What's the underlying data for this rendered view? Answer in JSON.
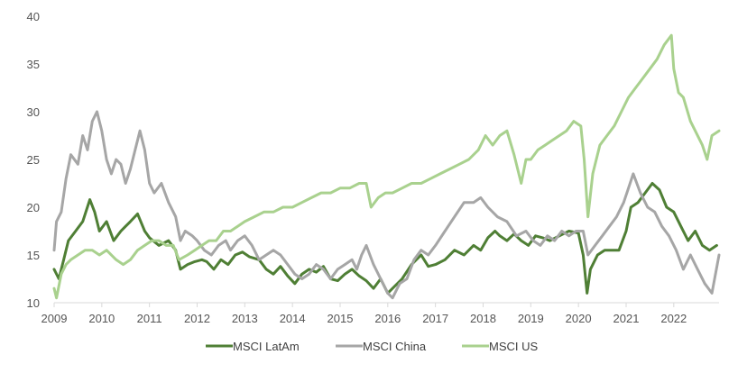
{
  "chart_data": {
    "type": "line",
    "title": "",
    "xlabel": "",
    "ylabel": "",
    "xlim": [
      2009,
      2022.95
    ],
    "ylim": [
      10,
      40
    ],
    "grid": false,
    "legend_position": "bottom",
    "x_tick_labels": [
      "2009",
      "2010",
      "2011",
      "2012",
      "2013",
      "2014",
      "2015",
      "2016",
      "2017",
      "2018",
      "2019",
      "2020",
      "2021",
      "2022"
    ],
    "y_tick_labels": [
      "10",
      "15",
      "20",
      "25",
      "30",
      "35",
      "40"
    ],
    "series": [
      {
        "name": "MSCI LatAm",
        "color": "#4f7f35",
        "x": [
          2009.0,
          2009.1,
          2009.2,
          2009.3,
          2009.45,
          2009.6,
          2009.75,
          2009.85,
          2009.95,
          2010.1,
          2010.25,
          2010.4,
          2010.5,
          2010.6,
          2010.75,
          2010.9,
          2011.0,
          2011.2,
          2011.4,
          2011.55,
          2011.65,
          2011.8,
          2011.95,
          2012.1,
          2012.2,
          2012.35,
          2012.5,
          2012.65,
          2012.8,
          2012.95,
          2013.1,
          2013.3,
          2013.45,
          2013.6,
          2013.75,
          2013.9,
          2014.05,
          2014.2,
          2014.35,
          2014.5,
          2014.65,
          2014.8,
          2014.95,
          2015.1,
          2015.25,
          2015.4,
          2015.55,
          2015.7,
          2015.85,
          2016.0,
          2016.1,
          2016.3,
          2016.5,
          2016.7,
          2016.85,
          2017.0,
          2017.2,
          2017.4,
          2017.6,
          2017.8,
          2017.95,
          2018.1,
          2018.25,
          2018.35,
          2018.5,
          2018.65,
          2018.8,
          2018.95,
          2019.1,
          2019.25,
          2019.4,
          2019.6,
          2019.8,
          2020.0,
          2020.1,
          2020.18,
          2020.25,
          2020.4,
          2020.55,
          2020.7,
          2020.85,
          2021.0,
          2021.1,
          2021.25,
          2021.4,
          2021.55,
          2021.7,
          2021.85,
          2022.0,
          2022.15,
          2022.3,
          2022.45,
          2022.6,
          2022.75,
          2022.9
        ],
        "y": [
          13.5,
          12.5,
          14.5,
          16.5,
          17.5,
          18.5,
          20.8,
          19.5,
          17.5,
          18.5,
          16.5,
          17.5,
          18.0,
          18.5,
          19.3,
          17.5,
          16.8,
          16.0,
          16.5,
          15.5,
          13.5,
          14.0,
          14.3,
          14.5,
          14.3,
          13.5,
          14.5,
          14.0,
          15.0,
          15.3,
          14.8,
          14.5,
          13.5,
          13.0,
          13.8,
          12.8,
          12.0,
          13.0,
          13.5,
          13.2,
          13.8,
          12.5,
          12.3,
          13.0,
          13.5,
          12.8,
          12.3,
          11.5,
          12.5,
          11.0,
          11.5,
          12.5,
          14.0,
          15.0,
          13.8,
          14.0,
          14.5,
          15.5,
          15.0,
          16.0,
          15.5,
          16.8,
          17.5,
          17.0,
          16.5,
          17.2,
          16.5,
          16.0,
          17.0,
          16.8,
          16.5,
          17.0,
          17.5,
          17.3,
          15.0,
          11.0,
          13.5,
          15.0,
          15.5,
          15.5,
          15.5,
          17.5,
          20.0,
          20.5,
          21.5,
          22.5,
          21.8,
          20.0,
          19.5,
          18.0,
          16.5,
          17.5,
          16.0,
          15.5,
          16.0
        ]
      },
      {
        "name": "MSCI China",
        "color": "#a6a6a6",
        "x": [
          2009.0,
          2009.05,
          2009.15,
          2009.25,
          2009.35,
          2009.5,
          2009.6,
          2009.7,
          2009.8,
          2009.9,
          2010.0,
          2010.1,
          2010.2,
          2010.3,
          2010.4,
          2010.5,
          2010.6,
          2010.7,
          2010.8,
          2010.9,
          2011.0,
          2011.1,
          2011.25,
          2011.4,
          2011.55,
          2011.65,
          2011.75,
          2011.9,
          2012.0,
          2012.15,
          2012.3,
          2012.45,
          2012.6,
          2012.7,
          2012.85,
          2013.0,
          2013.15,
          2013.3,
          2013.45,
          2013.6,
          2013.75,
          2013.9,
          2014.05,
          2014.2,
          2014.35,
          2014.5,
          2014.65,
          2014.8,
          2014.95,
          2015.1,
          2015.25,
          2015.35,
          2015.45,
          2015.55,
          2015.7,
          2015.85,
          2016.0,
          2016.1,
          2016.25,
          2016.4,
          2016.55,
          2016.7,
          2016.85,
          2017.0,
          2017.2,
          2017.4,
          2017.6,
          2017.8,
          2017.95,
          2018.1,
          2018.3,
          2018.5,
          2018.7,
          2018.9,
          2019.05,
          2019.2,
          2019.35,
          2019.5,
          2019.65,
          2019.8,
          2019.95,
          2020.1,
          2020.2,
          2020.35,
          2020.5,
          2020.65,
          2020.8,
          2020.95,
          2021.05,
          2021.15,
          2021.3,
          2021.45,
          2021.6,
          2021.75,
          2021.9,
          2022.05,
          2022.2,
          2022.35,
          2022.5,
          2022.65,
          2022.8,
          2022.95
        ],
        "y": [
          15.5,
          18.5,
          19.5,
          23.0,
          25.5,
          24.5,
          27.5,
          26.0,
          29.0,
          30.0,
          28.0,
          25.0,
          23.5,
          25.0,
          24.5,
          22.5,
          24.0,
          26.0,
          28.0,
          26.0,
          22.5,
          21.5,
          22.5,
          20.5,
          19.0,
          16.5,
          17.5,
          17.0,
          16.5,
          15.5,
          15.0,
          16.0,
          16.5,
          15.5,
          16.5,
          17.0,
          16.0,
          14.5,
          15.0,
          15.5,
          15.0,
          14.0,
          13.0,
          12.5,
          13.0,
          14.0,
          13.5,
          12.5,
          13.5,
          14.0,
          14.5,
          13.5,
          15.0,
          16.0,
          14.0,
          12.5,
          11.0,
          10.5,
          12.0,
          12.5,
          14.5,
          15.5,
          15.0,
          16.0,
          17.5,
          19.0,
          20.5,
          20.5,
          21.0,
          20.0,
          19.0,
          18.5,
          17.0,
          17.5,
          16.5,
          16.0,
          17.0,
          16.5,
          17.5,
          17.0,
          17.5,
          17.5,
          15.0,
          16.0,
          17.0,
          18.0,
          19.0,
          20.5,
          22.0,
          23.5,
          21.5,
          20.0,
          19.5,
          18.0,
          17.0,
          15.5,
          13.5,
          15.0,
          13.5,
          12.0,
          11.0,
          15.0
        ]
      },
      {
        "name": "MSCI US",
        "color": "#a9d18e",
        "x": [
          2009.0,
          2009.05,
          2009.15,
          2009.25,
          2009.35,
          2009.5,
          2009.65,
          2009.8,
          2009.95,
          2010.1,
          2010.3,
          2010.45,
          2010.6,
          2010.75,
          2010.9,
          2011.05,
          2011.2,
          2011.35,
          2011.5,
          2011.62,
          2011.8,
          2011.95,
          2012.1,
          2012.25,
          2012.4,
          2012.55,
          2012.7,
          2012.85,
          2013.0,
          2013.2,
          2013.4,
          2013.6,
          2013.8,
          2014.0,
          2014.2,
          2014.4,
          2014.6,
          2014.8,
          2015.0,
          2015.2,
          2015.4,
          2015.55,
          2015.65,
          2015.8,
          2015.95,
          2016.1,
          2016.3,
          2016.5,
          2016.7,
          2016.9,
          2017.1,
          2017.3,
          2017.5,
          2017.7,
          2017.9,
          2018.05,
          2018.2,
          2018.35,
          2018.5,
          2018.65,
          2018.8,
          2018.9,
          2019.0,
          2019.15,
          2019.3,
          2019.45,
          2019.6,
          2019.75,
          2019.9,
          2020.05,
          2020.12,
          2020.2,
          2020.3,
          2020.45,
          2020.6,
          2020.75,
          2020.9,
          2021.05,
          2021.2,
          2021.35,
          2021.5,
          2021.65,
          2021.8,
          2021.95,
          2022.0,
          2022.1,
          2022.2,
          2022.35,
          2022.45,
          2022.6,
          2022.7,
          2022.8,
          2022.95
        ],
        "y": [
          11.5,
          10.5,
          13.0,
          14.0,
          14.5,
          15.0,
          15.5,
          15.5,
          15.0,
          15.5,
          14.5,
          14.0,
          14.5,
          15.5,
          16.0,
          16.5,
          16.5,
          16.0,
          16.0,
          14.5,
          15.0,
          15.5,
          16.0,
          16.5,
          16.5,
          17.5,
          17.5,
          18.0,
          18.5,
          19.0,
          19.5,
          19.5,
          20.0,
          20.0,
          20.5,
          21.0,
          21.5,
          21.5,
          22.0,
          22.0,
          22.5,
          22.5,
          20.0,
          21.0,
          21.5,
          21.5,
          22.0,
          22.5,
          22.5,
          23.0,
          23.5,
          24.0,
          24.5,
          25.0,
          26.0,
          27.5,
          26.5,
          27.5,
          28.0,
          25.5,
          22.5,
          25.0,
          25.0,
          26.0,
          26.5,
          27.0,
          27.5,
          28.0,
          29.0,
          28.5,
          25.0,
          19.0,
          23.5,
          26.5,
          27.5,
          28.5,
          30.0,
          31.5,
          32.5,
          33.5,
          34.5,
          35.5,
          37.0,
          38.0,
          34.5,
          32.0,
          31.5,
          29.0,
          28.0,
          26.5,
          25.0,
          27.5,
          28.0
        ]
      }
    ]
  }
}
